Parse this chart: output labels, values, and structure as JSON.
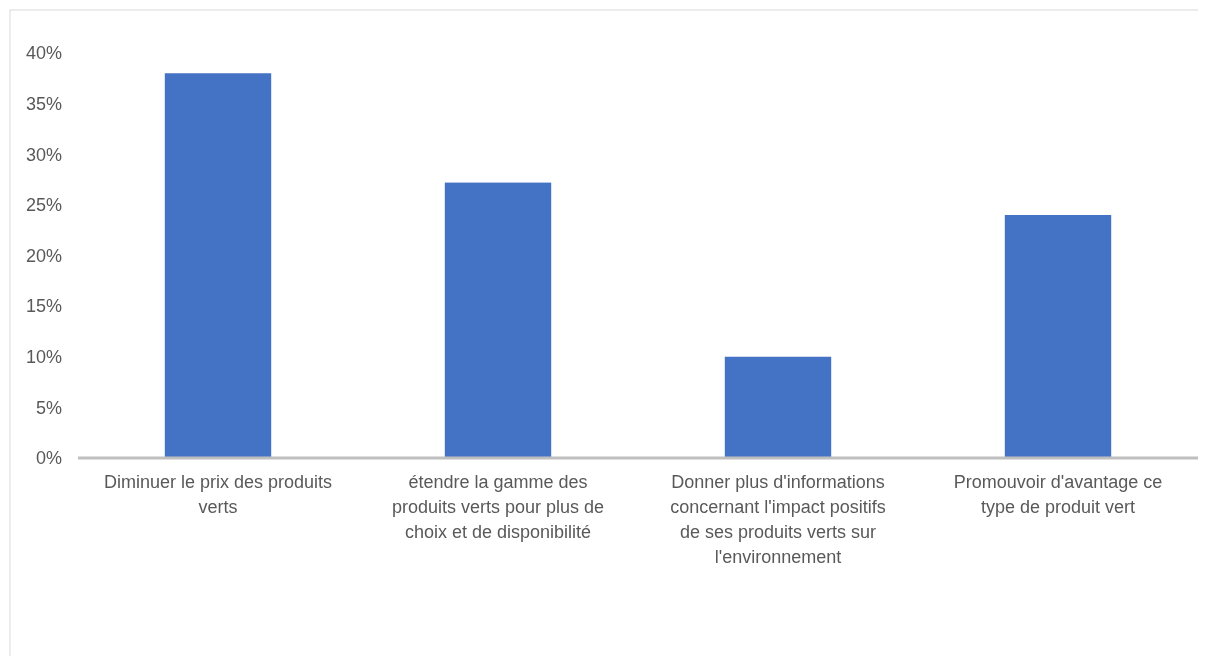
{
  "chart_data": {
    "type": "bar",
    "categories": [
      "Diminuer le prix des produits verts",
      "étendre la gamme des produits verts pour plus de choix et de disponibilité",
      "Donner plus d'informations concernant l'impact positifs de ses produits verts sur l'environnement",
      "Promouvoir d'avantage ce type de produit vert"
    ],
    "values": [
      38,
      27.2,
      10,
      24
    ],
    "color": "#4472c4",
    "ylim": [
      0,
      40
    ],
    "yticks": [
      {
        "value": 0,
        "label": "0%"
      },
      {
        "value": 5,
        "label": "5%"
      },
      {
        "value": 10,
        "label": "10%"
      },
      {
        "value": 15,
        "label": "15%"
      },
      {
        "value": 20,
        "label": "20%"
      },
      {
        "value": 25,
        "label": "25%"
      },
      {
        "value": 30,
        "label": "30%"
      },
      {
        "value": 35,
        "label": "35%"
      },
      {
        "value": 40,
        "label": "40%"
      }
    ],
    "grid": false
  }
}
